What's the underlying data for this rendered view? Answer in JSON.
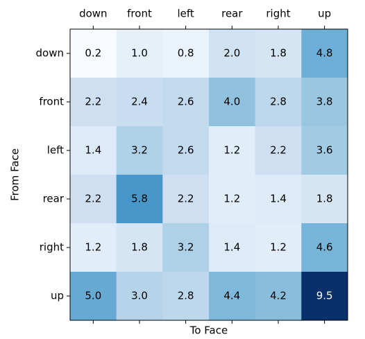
{
  "chart_data": {
    "type": "heatmap",
    "x_label": "To Face",
    "y_label": "From Face",
    "x_categories": [
      "down",
      "front",
      "left",
      "rear",
      "right",
      "up"
    ],
    "y_categories": [
      "down",
      "front",
      "left",
      "rear",
      "right",
      "up"
    ],
    "z": [
      [
        0.2,
        1.0,
        0.8,
        2.0,
        1.8,
        4.8
      ],
      [
        2.2,
        2.4,
        2.6,
        4.0,
        2.8,
        3.8
      ],
      [
        1.4,
        3.2,
        2.6,
        1.2,
        2.2,
        3.6
      ],
      [
        2.2,
        5.8,
        2.2,
        1.2,
        1.4,
        1.8
      ],
      [
        1.2,
        1.8,
        3.2,
        1.4,
        1.2,
        4.6
      ],
      [
        5.0,
        3.0,
        2.8,
        4.4,
        4.2,
        9.5
      ]
    ],
    "value_labels": [
      [
        "0.2",
        "1.0",
        "0.8",
        "2.0",
        "1.8",
        "4.8"
      ],
      [
        "2.2",
        "2.4",
        "2.6",
        "4.0",
        "2.8",
        "3.8"
      ],
      [
        "1.4",
        "3.2",
        "2.6",
        "1.2",
        "2.2",
        "3.6"
      ],
      [
        "2.2",
        "5.8",
        "2.2",
        "1.2",
        "1.4",
        "1.8"
      ],
      [
        "1.2",
        "1.8",
        "3.2",
        "1.4",
        "1.2",
        "4.6"
      ],
      [
        "5.0",
        "3.0",
        "2.8",
        "4.4",
        "4.2",
        "9.5"
      ]
    ],
    "colormap": "Blues"
  }
}
